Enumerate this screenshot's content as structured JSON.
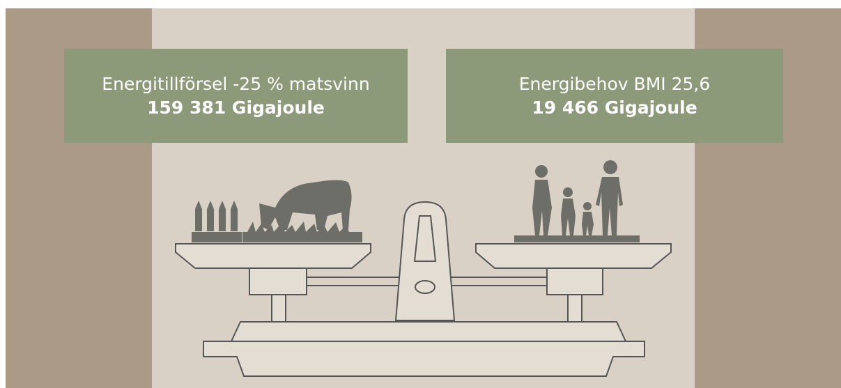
{
  "left_box": {
    "label": "Energitillförsel -25 % matsvinn",
    "value": "159 381 Gigajoule"
  },
  "right_box": {
    "label": "Energibehov BMI 25,6",
    "value": "19 466 Gigajoule"
  }
}
